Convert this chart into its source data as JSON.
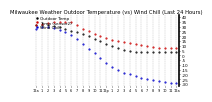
{
  "title": "Milwaukee Weather Outdoor Temperature (vs) Wind Chill (Last 24 Hours)",
  "title_fontsize": 3.8,
  "background_color": "#ffffff",
  "grid_color": "#888888",
  "num_points": 25,
  "outdoor_temp": [
    32,
    32,
    32,
    31,
    30,
    28,
    26,
    24,
    22,
    20,
    17,
    15,
    12,
    10,
    8,
    6,
    5,
    4,
    3,
    3,
    3,
    3,
    3,
    3,
    3
  ],
  "outdoor_temp2": [
    32,
    33,
    34,
    35,
    35,
    35,
    35,
    32,
    28,
    25,
    22,
    20,
    18,
    16,
    15,
    14,
    13,
    12,
    11,
    10,
    9,
    8,
    8,
    8,
    8
  ],
  "wind_chill": [
    28,
    30,
    30,
    29,
    27,
    24,
    21,
    17,
    12,
    7,
    2,
    -3,
    -8,
    -12,
    -15,
    -18,
    -20,
    -22,
    -24,
    -25,
    -26,
    -27,
    -28,
    -29,
    -29
  ],
  "line_color_black": "#000000",
  "line_color_red": "#cc0000",
  "line_color_blue": "#0000cc",
  "ylim_min": -32,
  "ylim_max": 42,
  "ytick_values": [
    40,
    35,
    30,
    25,
    20,
    15,
    10,
    5,
    0,
    -5,
    -10,
    -15,
    -20,
    -25,
    -30
  ],
  "ytick_labels": [
    "40",
    "35",
    "30",
    "25",
    "20",
    "15",
    "10",
    "5",
    "0",
    "-5",
    "-10",
    "-15",
    "-20",
    "-25",
    "-30"
  ],
  "ylabel_fontsize": 3.0,
  "xlabel_fontsize": 2.5,
  "xtick_labels": [
    "12a",
    "1",
    "2",
    "3",
    "4",
    "5",
    "6",
    "7",
    "8",
    "9",
    "10",
    "11",
    "12p",
    "1",
    "2",
    "3",
    "4",
    "5",
    "6",
    "7",
    "8",
    "9",
    "10",
    "11",
    "12a"
  ],
  "legend_labels": [
    "Outdoor Temp",
    "Temp (sensor2)",
    "Wind Chill"
  ],
  "legend_fontsize": 3.0
}
